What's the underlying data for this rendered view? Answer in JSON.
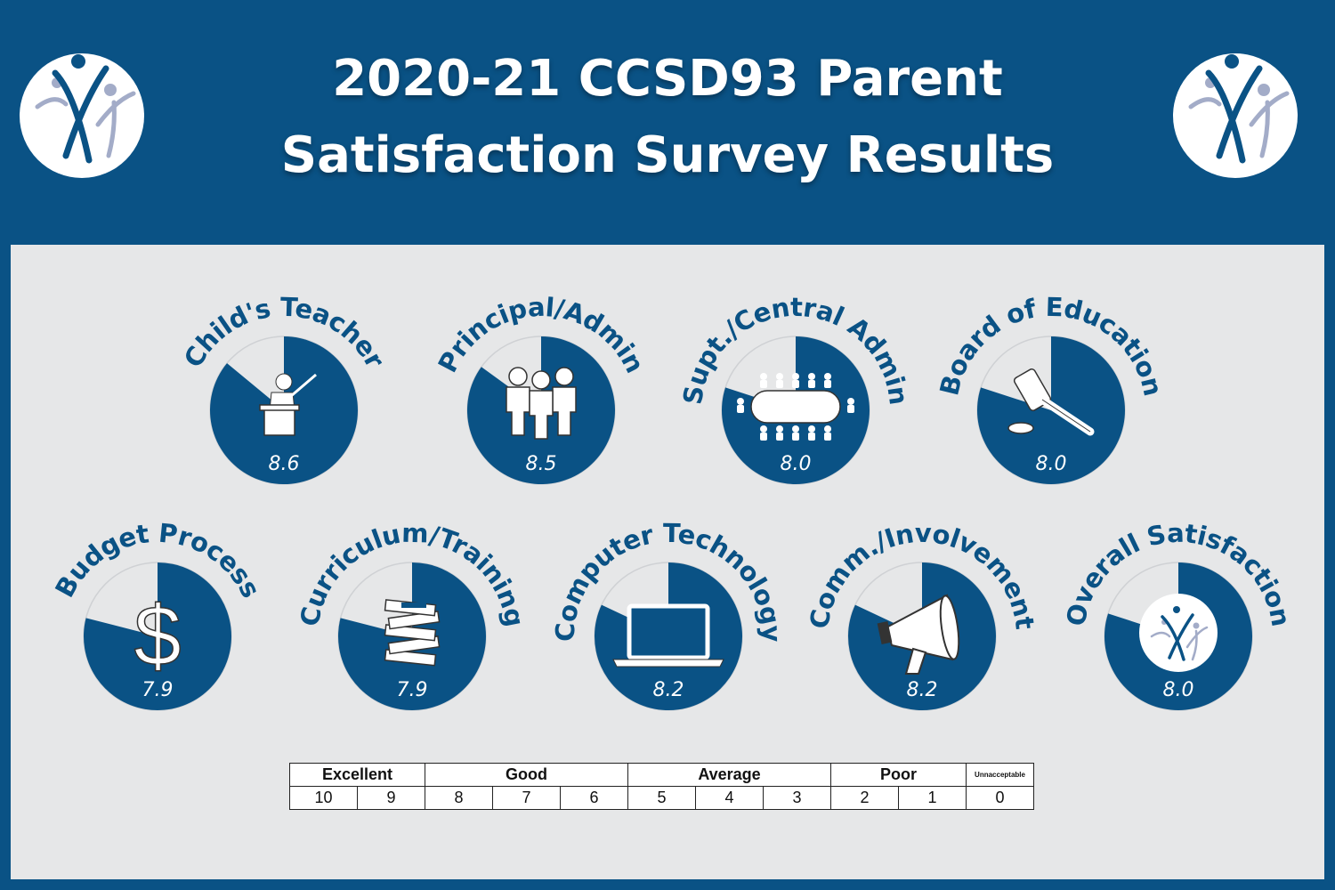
{
  "title_line1": "2020-21 CCSD93 Parent",
  "title_line2": "Satisfaction Survey Results",
  "colors": {
    "brand": "#0a5285",
    "panel": "#e6e7e8",
    "unfilled": "#e6e7e8",
    "white": "#ffffff"
  },
  "chart_data": {
    "type": "pie",
    "scale_max": 10,
    "items": [
      {
        "label": "Child's Teacher",
        "value": 8.6,
        "display": "8.6",
        "icon": "teacher-icon"
      },
      {
        "label": "Principal/Admin",
        "value": 8.5,
        "display": "8.5",
        "icon": "group-icon"
      },
      {
        "label": "Supt./Central Admin",
        "value": 8.0,
        "display": "8.0",
        "icon": "meeting-table-icon"
      },
      {
        "label": "Board of Education",
        "value": 8.0,
        "display": "8.0",
        "icon": "gavel-icon"
      },
      {
        "label": "Budget Process",
        "value": 7.9,
        "display": "7.9",
        "icon": "dollar-icon"
      },
      {
        "label": "Curriculum/Training",
        "value": 7.9,
        "display": "7.9",
        "icon": "books-icon"
      },
      {
        "label": "Computer Technology",
        "value": 8.2,
        "display": "8.2",
        "icon": "laptop-icon"
      },
      {
        "label": "Comm./Involvement",
        "value": 8.2,
        "display": "8.2",
        "icon": "megaphone-icon"
      },
      {
        "label": "Overall Satisfaction",
        "value": 8.0,
        "display": "8.0",
        "icon": "logo-icon"
      }
    ]
  },
  "scale": {
    "levels": [
      {
        "label": "Excellent",
        "span": 2
      },
      {
        "label": "Good",
        "span": 3
      },
      {
        "label": "Average",
        "span": 3
      },
      {
        "label": "Poor",
        "span": 2
      },
      {
        "label": "Unnacceptable",
        "span": 1
      }
    ],
    "numbers": [
      "10",
      "9",
      "8",
      "7",
      "6",
      "5",
      "4",
      "3",
      "2",
      "1",
      "0"
    ]
  }
}
